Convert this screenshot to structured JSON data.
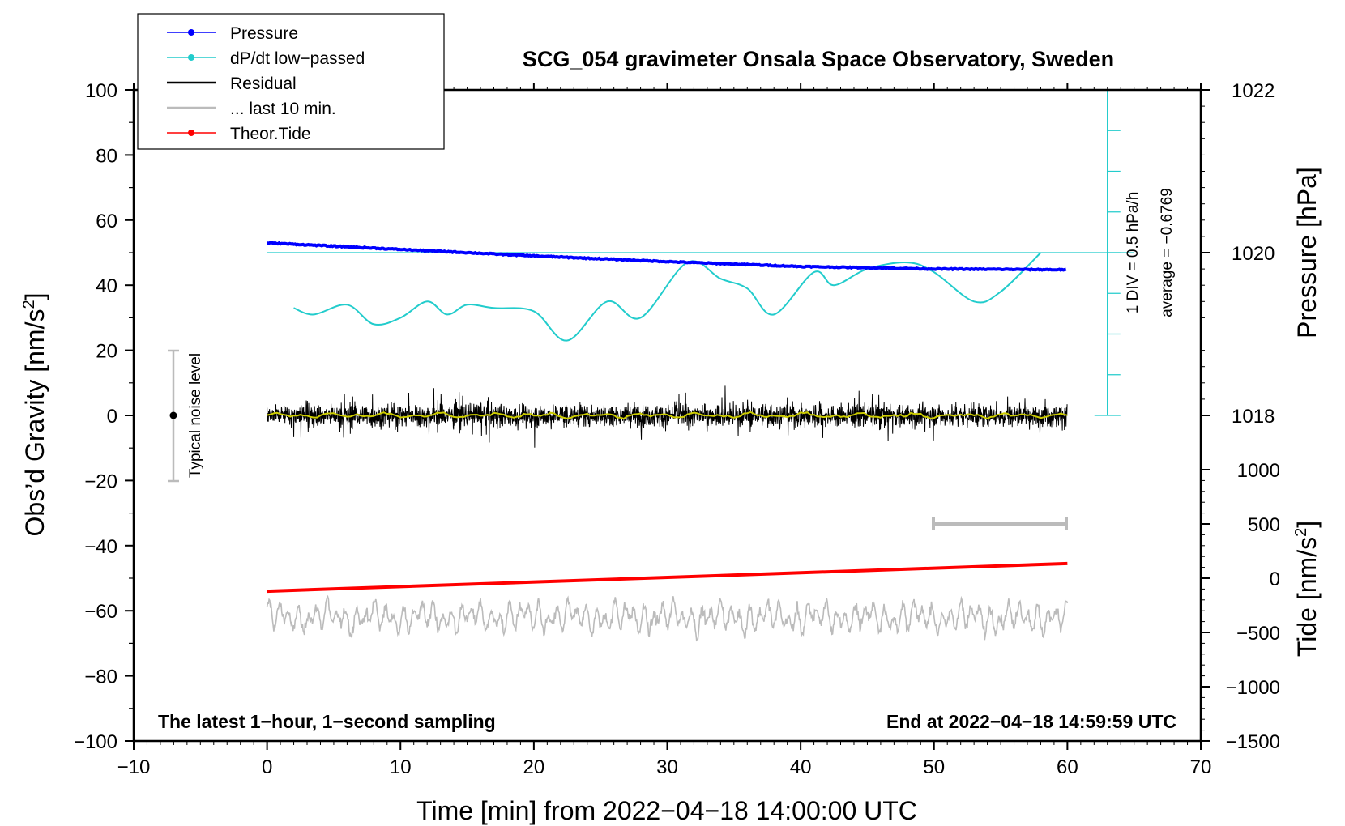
{
  "chart_data": {
    "type": "line",
    "title": "SCG_054 gravimeter Onsala Space Observatory, Sweden",
    "xlabel": "Time [min] from 2022−04−18 14:00:00 UTC",
    "ylabel_left": "Obs’d Gravity [nm/s²]",
    "ylabel_right_top": "Pressure [hPa]",
    "ylabel_right_bottom": "Tide [nm/s²]",
    "xlim": [
      -10,
      70
    ],
    "ylim": [
      -100,
      100
    ],
    "xticks": [
      -10,
      0,
      10,
      20,
      30,
      40,
      50,
      60,
      70
    ],
    "xtick_labels": [
      "−10",
      "0",
      "10",
      "20",
      "30",
      "40",
      "50",
      "60",
      "70"
    ],
    "yticks": [
      -100,
      -80,
      -60,
      -40,
      -20,
      0,
      20,
      40,
      60,
      80,
      100
    ],
    "ytick_labels": [
      "−100",
      "−80",
      "−60",
      "−40",
      "−20",
      "0",
      "20",
      "40",
      "60",
      "80",
      "100"
    ],
    "pressure_axis": {
      "gravity_per_hpa": 25,
      "ticks": [
        1018,
        1020,
        1022
      ],
      "tick_labels": [
        "1018",
        "1020",
        "1022"
      ]
    },
    "tide_axis": {
      "gravity_per_unit": 0.03333,
      "ticks": [
        -1500,
        -1000,
        -500,
        0,
        500,
        1000
      ],
      "tick_labels": [
        "−1500",
        "−1000",
        "−500",
        "0",
        "500",
        "1000"
      ]
    },
    "series": [
      {
        "name": "Pressure",
        "color": "#0000ff",
        "units": "hPa",
        "x": [
          0,
          10,
          20,
          30,
          40,
          50,
          60
        ],
        "values": [
          1020.12,
          1020.04,
          1019.96,
          1019.89,
          1019.83,
          1019.8,
          1019.79
        ]
      },
      {
        "name": "dP/dt low−passed",
        "color": "#22cccc",
        "units": "gravity-axis",
        "x": [
          2,
          3.5,
          6,
          8,
          10,
          12,
          13.5,
          15,
          17,
          20,
          22.5,
          25.5,
          28,
          31.5,
          34,
          36,
          38,
          41,
          42.5,
          45,
          48,
          50,
          53,
          55,
          58
        ],
        "values": [
          33,
          31,
          34,
          28,
          30,
          35,
          31,
          34,
          33,
          32,
          23,
          35,
          30,
          47,
          42,
          39,
          31,
          44,
          40,
          45,
          47,
          44,
          35,
          38,
          50
        ]
      },
      {
        "name": "Residual",
        "color": "#000000",
        "x_range": [
          0,
          60
        ],
        "amplitude_nm_s2": 8,
        "peak_range": [
          -12,
          11
        ]
      },
      {
        "name": "... last 10 min.",
        "color": "#bbbbbb",
        "x_range": [
          0,
          60
        ],
        "center": -62,
        "amplitude_nm_s2": 5
      },
      {
        "name": "Theor.Tide",
        "color": "#ff0000",
        "units": "nm/s²",
        "x": [
          0,
          60
        ],
        "values": [
          -54,
          -45.5
        ]
      }
    ],
    "reference_line": {
      "value_hpa": 1020,
      "label": "1 DIV = 0.5 hPa/h",
      "average_label": "average = −0.6769"
    },
    "noise_bar": {
      "label": "Typical noise level",
      "x": -7,
      "range": [
        -20,
        20
      ]
    },
    "ten_min_bar": {
      "x_range": [
        50,
        60
      ],
      "y": -33
    },
    "legend": {
      "position": "top-left",
      "entries": [
        "Pressure",
        "dP/dt low−passed",
        "Residual",
        "... last 10 min.",
        "Theor.Tide"
      ]
    },
    "note_left": "The latest 1−hour, 1−second sampling",
    "note_right": "End at 2022−04−18 14:59:59 UTC"
  }
}
